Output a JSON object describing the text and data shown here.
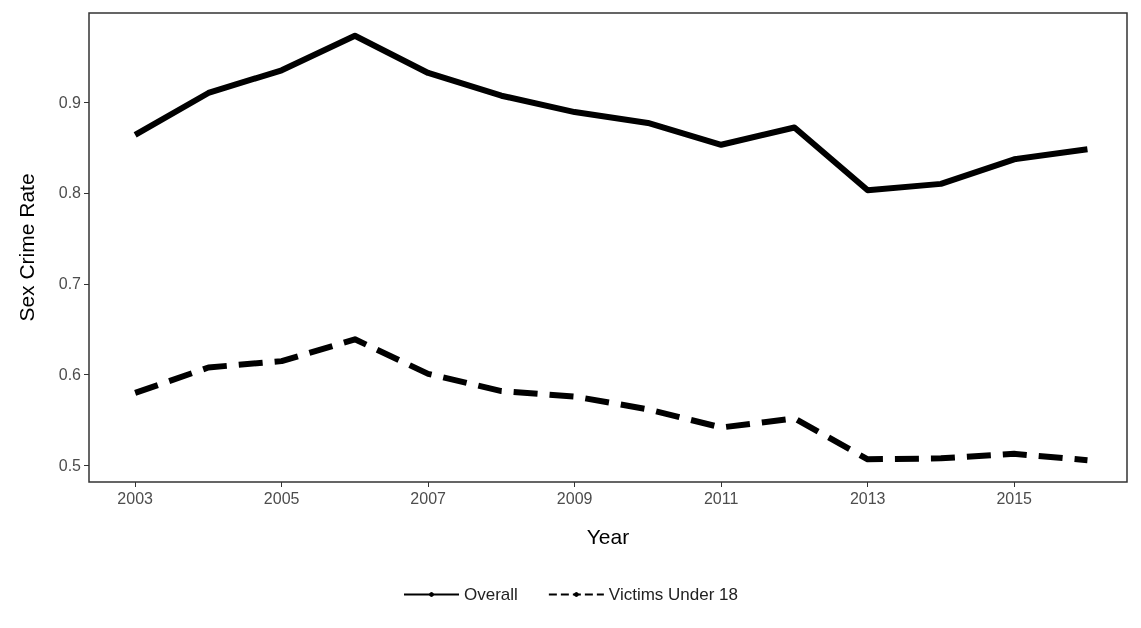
{
  "chart_data": {
    "type": "line",
    "xlabel": "Year",
    "ylabel": "Sex Crime Rate",
    "x": [
      2003,
      2004,
      2005,
      2006,
      2007,
      2008,
      2009,
      2010,
      2011,
      2012,
      2013,
      2014,
      2015,
      2016
    ],
    "series": [
      {
        "name": "Overall",
        "color": "#000000",
        "line_style": "solid",
        "values": [
          0.864,
          0.91,
          0.935,
          0.973,
          0.932,
          0.907,
          0.889,
          0.877,
          0.853,
          0.872,
          0.803,
          0.81,
          0.837,
          0.848
        ]
      },
      {
        "name": "Victims Under 18",
        "color": "#000000",
        "line_style": "dashed",
        "values": [
          0.58,
          0.608,
          0.615,
          0.639,
          0.601,
          0.582,
          0.576,
          0.562,
          0.542,
          0.552,
          0.507,
          0.508,
          0.513,
          0.506
        ]
      }
    ],
    "xlim": [
      2002.37,
      2016.54
    ],
    "xticks": [
      2003,
      2005,
      2007,
      2009,
      2011,
      2013,
      2015
    ],
    "ylim": [
      0.482,
      0.998
    ],
    "yticks": [
      0.5,
      0.6,
      0.7,
      0.8,
      0.9
    ],
    "grid": false,
    "legend": "bottom",
    "marker": "none"
  }
}
